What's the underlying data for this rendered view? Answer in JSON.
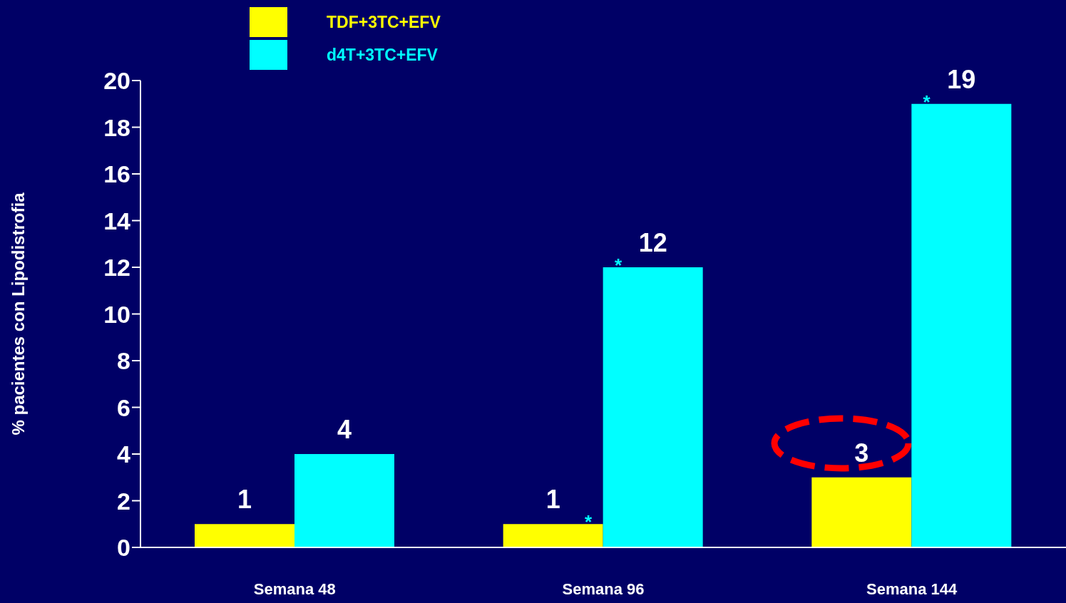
{
  "chart_data": {
    "type": "bar",
    "ylabel": "% pacientes con Lipodistrofia",
    "categories": [
      "Semana 48",
      "Semana 96",
      "Semana 144"
    ],
    "series": [
      {
        "name": "TDF+3TC+EFV",
        "color": "#ffff00",
        "values": [
          1,
          1,
          3
        ]
      },
      {
        "name": "d4T+3TC+EFV",
        "color": "#00ffff",
        "values": [
          4,
          12,
          19
        ]
      }
    ],
    "ylim": [
      0,
      20
    ],
    "yticks": [
      0,
      2,
      4,
      6,
      8,
      10,
      12,
      14,
      16,
      18,
      20
    ],
    "data_labels": true,
    "legend": "top left",
    "grid": false,
    "annotations": [
      {
        "text": "*",
        "x": "Semana 96",
        "y": 1
      },
      {
        "text": "*",
        "x": "Semana 96",
        "y": 12
      },
      {
        "text": "*",
        "x": "Semana 144",
        "y": 19
      }
    ]
  }
}
